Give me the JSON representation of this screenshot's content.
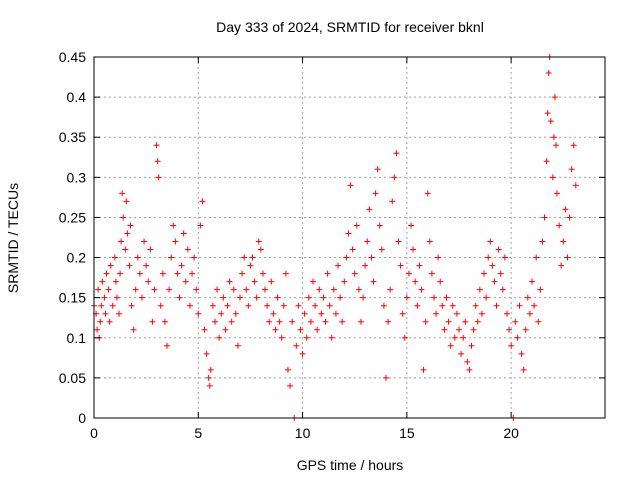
{
  "chart_data": {
    "type": "scatter",
    "title": "Day 333 of 2024, SRMTID for receiver bknl",
    "xlabel": "GPS time / hours",
    "ylabel": "SRMTID / TECUs",
    "xlim": [
      0,
      24.5
    ],
    "ylim": [
      0,
      0.45
    ],
    "x_ticks": [
      0,
      5,
      10,
      15,
      20
    ],
    "x_tick_labels": [
      "0",
      "5",
      "10",
      "15",
      "20"
    ],
    "y_ticks": [
      0,
      0.05,
      0.1,
      0.15,
      0.2,
      0.25,
      0.3,
      0.35,
      0.4,
      0.45
    ],
    "y_tick_labels": [
      "0",
      "0.05",
      "0.1",
      "0.15",
      "0.2",
      "0.25",
      "0.3",
      "0.35",
      "0.4",
      "0.45"
    ],
    "grid": true,
    "marker": "+",
    "color": "#ff0000",
    "series": [
      {
        "name": "SRMTID",
        "points": [
          [
            0.0,
            0.14
          ],
          [
            0.1,
            0.13
          ],
          [
            0.15,
            0.11
          ],
          [
            0.2,
            0.16
          ],
          [
            0.25,
            0.1
          ],
          [
            0.3,
            0.12
          ],
          [
            0.35,
            0.14
          ],
          [
            0.4,
            0.17
          ],
          [
            0.5,
            0.15
          ],
          [
            0.55,
            0.13
          ],
          [
            0.6,
            0.18
          ],
          [
            0.7,
            0.16
          ],
          [
            0.75,
            0.12
          ],
          [
            0.8,
            0.19
          ],
          [
            0.9,
            0.14
          ],
          [
            1.0,
            0.2
          ],
          [
            1.05,
            0.17
          ],
          [
            1.1,
            0.15
          ],
          [
            1.2,
            0.13
          ],
          [
            1.25,
            0.18
          ],
          [
            1.3,
            0.22
          ],
          [
            1.35,
            0.28
          ],
          [
            1.4,
            0.25
          ],
          [
            1.5,
            0.21
          ],
          [
            1.55,
            0.27
          ],
          [
            1.6,
            0.23
          ],
          [
            1.7,
            0.19
          ],
          [
            1.75,
            0.24
          ],
          [
            1.8,
            0.14
          ],
          [
            1.9,
            0.11
          ],
          [
            2.0,
            0.16
          ],
          [
            2.1,
            0.2
          ],
          [
            2.2,
            0.18
          ],
          [
            2.3,
            0.15
          ],
          [
            2.4,
            0.22
          ],
          [
            2.5,
            0.19
          ],
          [
            2.6,
            0.17
          ],
          [
            2.7,
            0.21
          ],
          [
            2.8,
            0.12
          ],
          [
            2.9,
            0.16
          ],
          [
            3.0,
            0.34
          ],
          [
            3.05,
            0.32
          ],
          [
            3.1,
            0.3
          ],
          [
            3.2,
            0.14
          ],
          [
            3.3,
            0.18
          ],
          [
            3.4,
            0.12
          ],
          [
            3.5,
            0.09
          ],
          [
            3.6,
            0.16
          ],
          [
            3.7,
            0.2
          ],
          [
            3.8,
            0.24
          ],
          [
            3.9,
            0.22
          ],
          [
            4.0,
            0.18
          ],
          [
            4.1,
            0.15
          ],
          [
            4.2,
            0.19
          ],
          [
            4.3,
            0.23
          ],
          [
            4.4,
            0.17
          ],
          [
            4.5,
            0.21
          ],
          [
            4.6,
            0.14
          ],
          [
            4.7,
            0.18
          ],
          [
            4.8,
            0.2
          ],
          [
            4.9,
            0.16
          ],
          [
            5.0,
            0.13
          ],
          [
            5.1,
            0.24
          ],
          [
            5.2,
            0.27
          ],
          [
            5.3,
            0.11
          ],
          [
            5.4,
            0.08
          ],
          [
            5.5,
            0.05
          ],
          [
            5.55,
            0.04
          ],
          [
            5.6,
            0.06
          ],
          [
            5.7,
            0.14
          ],
          [
            5.8,
            0.12
          ],
          [
            5.9,
            0.16
          ],
          [
            6.0,
            0.1
          ],
          [
            6.1,
            0.13
          ],
          [
            6.2,
            0.15
          ],
          [
            6.3,
            0.11
          ],
          [
            6.4,
            0.14
          ],
          [
            6.5,
            0.17
          ],
          [
            6.6,
            0.12
          ],
          [
            6.7,
            0.16
          ],
          [
            6.8,
            0.13
          ],
          [
            6.9,
            0.09
          ],
          [
            7.0,
            0.15
          ],
          [
            7.1,
            0.18
          ],
          [
            7.2,
            0.2
          ],
          [
            7.3,
            0.16
          ],
          [
            7.4,
            0.14
          ],
          [
            7.5,
            0.19
          ],
          [
            7.6,
            0.2
          ],
          [
            7.7,
            0.17
          ],
          [
            7.8,
            0.15
          ],
          [
            7.9,
            0.22
          ],
          [
            8.0,
            0.21
          ],
          [
            8.1,
            0.18
          ],
          [
            8.2,
            0.16
          ],
          [
            8.3,
            0.14
          ],
          [
            8.4,
            0.12
          ],
          [
            8.5,
            0.17
          ],
          [
            8.6,
            0.13
          ],
          [
            8.7,
            0.11
          ],
          [
            8.8,
            0.15
          ],
          [
            8.9,
            0.12
          ],
          [
            9.0,
            0.1
          ],
          [
            9.1,
            0.14
          ],
          [
            9.2,
            0.18
          ],
          [
            9.3,
            0.06
          ],
          [
            9.4,
            0.04
          ],
          [
            9.5,
            0.12
          ],
          [
            9.6,
            0.0
          ],
          [
            9.7,
            0.09
          ],
          [
            9.8,
            0.14
          ],
          [
            9.9,
            0.11
          ],
          [
            10.0,
            0.08
          ],
          [
            10.1,
            0.13
          ],
          [
            10.2,
            0.1
          ],
          [
            10.3,
            0.15
          ],
          [
            10.4,
            0.12
          ],
          [
            10.5,
            0.17
          ],
          [
            10.6,
            0.14
          ],
          [
            10.7,
            0.11
          ],
          [
            10.8,
            0.16
          ],
          [
            10.9,
            0.13
          ],
          [
            11.0,
            0.15
          ],
          [
            11.1,
            0.12
          ],
          [
            11.2,
            0.18
          ],
          [
            11.3,
            0.14
          ],
          [
            11.4,
            0.1
          ],
          [
            11.5,
            0.16
          ],
          [
            11.6,
            0.13
          ],
          [
            11.7,
            0.19
          ],
          [
            11.8,
            0.15
          ],
          [
            11.9,
            0.12
          ],
          [
            12.0,
            0.17
          ],
          [
            12.1,
            0.2
          ],
          [
            12.2,
            0.23
          ],
          [
            12.3,
            0.29
          ],
          [
            12.4,
            0.21
          ],
          [
            12.5,
            0.18
          ],
          [
            12.6,
            0.24
          ],
          [
            12.7,
            0.16
          ],
          [
            12.8,
            0.12
          ],
          [
            12.9,
            0.15
          ],
          [
            13.0,
            0.19
          ],
          [
            13.1,
            0.22
          ],
          [
            13.2,
            0.26
          ],
          [
            13.3,
            0.2
          ],
          [
            13.4,
            0.17
          ],
          [
            13.5,
            0.28
          ],
          [
            13.6,
            0.31
          ],
          [
            13.7,
            0.24
          ],
          [
            13.8,
            0.21
          ],
          [
            13.9,
            0.14
          ],
          [
            14.0,
            0.05
          ],
          [
            14.1,
            0.12
          ],
          [
            14.2,
            0.16
          ],
          [
            14.3,
            0.27
          ],
          [
            14.4,
            0.3
          ],
          [
            14.5,
            0.33
          ],
          [
            14.6,
            0.22
          ],
          [
            14.7,
            0.19
          ],
          [
            14.8,
            0.13
          ],
          [
            14.9,
            0.1
          ],
          [
            15.0,
            0.15
          ],
          [
            15.1,
            0.18
          ],
          [
            15.2,
            0.24
          ],
          [
            15.3,
            0.21
          ],
          [
            15.4,
            0.17
          ],
          [
            15.5,
            0.14
          ],
          [
            15.6,
            0.19
          ],
          [
            15.7,
            0.16
          ],
          [
            15.8,
            0.06
          ],
          [
            15.9,
            0.12
          ],
          [
            16.0,
            0.28
          ],
          [
            16.1,
            0.22
          ],
          [
            16.2,
            0.18
          ],
          [
            16.3,
            0.15
          ],
          [
            16.4,
            0.13
          ],
          [
            16.5,
            0.2
          ],
          [
            16.6,
            0.17
          ],
          [
            16.7,
            0.14
          ],
          [
            16.8,
            0.11
          ],
          [
            16.9,
            0.15
          ],
          [
            17.0,
            0.12
          ],
          [
            17.1,
            0.09
          ],
          [
            17.2,
            0.14
          ],
          [
            17.3,
            0.1
          ],
          [
            17.4,
            0.13
          ],
          [
            17.5,
            0.11
          ],
          [
            17.6,
            0.08
          ],
          [
            17.7,
            0.1
          ],
          [
            17.8,
            0.12
          ],
          [
            17.9,
            0.07
          ],
          [
            18.0,
            0.06
          ],
          [
            18.1,
            0.09
          ],
          [
            18.2,
            0.11
          ],
          [
            18.3,
            0.14
          ],
          [
            18.4,
            0.12
          ],
          [
            18.5,
            0.16
          ],
          [
            18.6,
            0.13
          ],
          [
            18.7,
            0.18
          ],
          [
            18.8,
            0.15
          ],
          [
            18.9,
            0.2
          ],
          [
            19.0,
            0.22
          ],
          [
            19.1,
            0.19
          ],
          [
            19.2,
            0.17
          ],
          [
            19.3,
            0.14
          ],
          [
            19.4,
            0.21
          ],
          [
            19.5,
            0.18
          ],
          [
            19.6,
            0.16
          ],
          [
            19.7,
            0.2
          ],
          [
            19.8,
            0.13
          ],
          [
            19.9,
            0.11
          ],
          [
            20.0,
            0.09
          ],
          [
            20.1,
            0.0
          ],
          [
            20.2,
            0.12
          ],
          [
            20.3,
            0.1
          ],
          [
            20.4,
            0.14
          ],
          [
            20.5,
            0.08
          ],
          [
            20.6,
            0.06
          ],
          [
            20.7,
            0.11
          ],
          [
            20.8,
            0.15
          ],
          [
            20.9,
            0.13
          ],
          [
            21.0,
            0.17
          ],
          [
            21.1,
            0.14
          ],
          [
            21.2,
            0.2
          ],
          [
            21.3,
            0.12
          ],
          [
            21.4,
            0.16
          ],
          [
            21.5,
            0.22
          ],
          [
            21.6,
            0.25
          ],
          [
            21.7,
            0.32
          ],
          [
            21.75,
            0.38
          ],
          [
            21.8,
            0.43
          ],
          [
            21.85,
            0.45
          ],
          [
            21.9,
            0.37
          ],
          [
            22.0,
            0.3
          ],
          [
            22.05,
            0.35
          ],
          [
            22.1,
            0.4
          ],
          [
            22.15,
            0.34
          ],
          [
            22.2,
            0.28
          ],
          [
            22.3,
            0.24
          ],
          [
            22.4,
            0.19
          ],
          [
            22.5,
            0.22
          ],
          [
            22.6,
            0.26
          ],
          [
            22.7,
            0.2
          ],
          [
            22.8,
            0.25
          ],
          [
            22.9,
            0.31
          ],
          [
            23.0,
            0.34
          ],
          [
            23.1,
            0.29
          ]
        ]
      }
    ]
  }
}
